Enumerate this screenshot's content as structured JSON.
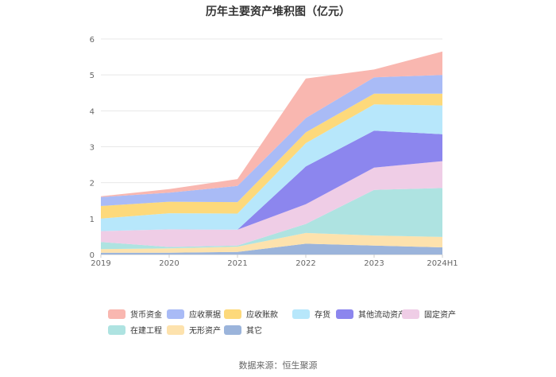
{
  "title": "历年主要资产堆积图（亿元）",
  "source": "数据来源：恒生聚源",
  "chart_data": {
    "type": "area",
    "stacked": true,
    "categories": [
      "2019",
      "2020",
      "2021",
      "2022",
      "2023",
      "2024H1"
    ],
    "ylim": [
      0,
      6
    ],
    "yticks": [
      "0",
      "1",
      "2",
      "3",
      "4",
      "5",
      "6"
    ],
    "grid": true,
    "legend_position": "bottom",
    "series": [
      {
        "name": "其它",
        "color": "#9bb4db",
        "values": [
          0.05,
          0.05,
          0.07,
          0.3,
          0.25,
          0.2
        ]
      },
      {
        "name": "无形资产",
        "color": "#fde2ad",
        "values": [
          0.1,
          0.12,
          0.15,
          0.3,
          0.28,
          0.29
        ]
      },
      {
        "name": "在建工程",
        "color": "#aee3e1",
        "values": [
          0.2,
          0.04,
          0.03,
          0.25,
          1.27,
          1.36
        ]
      },
      {
        "name": "固定资产",
        "color": "#efcde6",
        "values": [
          0.3,
          0.49,
          0.44,
          0.55,
          0.62,
          0.75
        ]
      },
      {
        "name": "其他流动资产",
        "color": "#8c86ee",
        "values": [
          0.0,
          0.0,
          0.0,
          1.05,
          1.03,
          0.75
        ]
      },
      {
        "name": "存货",
        "color": "#b7e7fb",
        "values": [
          0.35,
          0.45,
          0.45,
          0.65,
          0.73,
          0.8
        ]
      },
      {
        "name": "应收账款",
        "color": "#fdd97b",
        "values": [
          0.35,
          0.32,
          0.32,
          0.3,
          0.3,
          0.33
        ]
      },
      {
        "name": "应收票据",
        "color": "#a9bbf6",
        "values": [
          0.25,
          0.25,
          0.45,
          0.4,
          0.45,
          0.52
        ]
      },
      {
        "name": "货币资金",
        "color": "#f9b7b0",
        "values": [
          0.02,
          0.1,
          0.19,
          1.1,
          0.22,
          0.65
        ]
      }
    ]
  }
}
